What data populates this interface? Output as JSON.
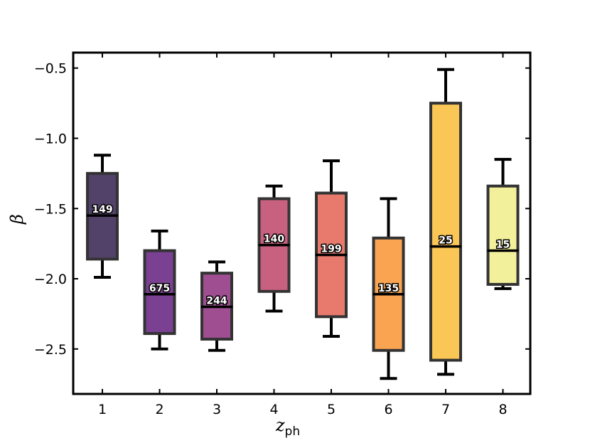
{
  "chart_data": {
    "type": "box",
    "xlabel": "z",
    "xlabel_sub": "ph",
    "ylabel": "β",
    "ylim": [
      -2.82,
      -0.39
    ],
    "yticks": [
      -0.5,
      -1.0,
      -1.5,
      -2.0,
      -2.5
    ],
    "ytick_labels": [
      "−0.5",
      "−1.0",
      "−1.5",
      "−2.0",
      "−2.5"
    ],
    "grid": false,
    "categories": [
      "1",
      "2",
      "3",
      "4",
      "5",
      "6",
      "7",
      "8"
    ],
    "boxes": [
      {
        "category": "1",
        "whisker_low": -1.99,
        "q1": -1.86,
        "median": -1.55,
        "q3": -1.25,
        "whisker_high": -1.12,
        "count": "149",
        "color": "#3f2d59"
      },
      {
        "category": "2",
        "whisker_low": -2.5,
        "q1": -2.39,
        "median": -2.11,
        "q3": -1.8,
        "whisker_high": -1.66,
        "count": "675",
        "color": "#6b2b85"
      },
      {
        "category": "3",
        "whisker_low": -2.51,
        "q1": -2.43,
        "median": -2.2,
        "q3": -1.96,
        "whisker_high": -1.88,
        "count": "244",
        "color": "#933b85"
      },
      {
        "category": "4",
        "whisker_low": -2.23,
        "q1": -2.09,
        "median": -1.76,
        "q3": -1.43,
        "whisker_high": -1.34,
        "count": "140",
        "color": "#c24f72"
      },
      {
        "category": "5",
        "whisker_low": -2.41,
        "q1": -2.27,
        "median": -1.83,
        "q3": -1.39,
        "whisker_high": -1.16,
        "count": "199",
        "color": "#e56b5d"
      },
      {
        "category": "6",
        "whisker_low": -2.71,
        "q1": -2.51,
        "median": -2.11,
        "q3": -1.71,
        "whisker_high": -1.43,
        "count": "135",
        "color": "#f99a3e"
      },
      {
        "category": "7",
        "whisker_low": -2.68,
        "q1": -2.58,
        "median": -1.77,
        "q3": -0.75,
        "whisker_high": -0.51,
        "count": "25",
        "color": "#fac042"
      },
      {
        "category": "8",
        "whisker_low": -2.07,
        "q1": -2.04,
        "median": -1.8,
        "q3": -1.34,
        "whisker_high": -1.15,
        "count": "15",
        "color": "#f2ee90"
      }
    ]
  }
}
